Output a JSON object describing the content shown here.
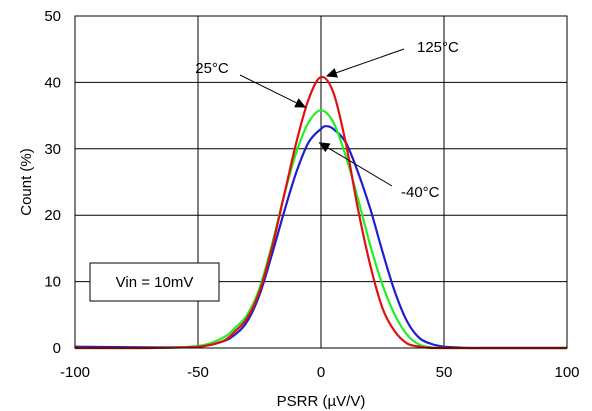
{
  "chart_data": {
    "type": "line",
    "xlabel": "PSRR (µV/V)",
    "ylabel": "Count (%)",
    "xlim": [
      -100,
      100
    ],
    "ylim": [
      0,
      50
    ],
    "xticks": [
      -100,
      -50,
      0,
      50,
      100
    ],
    "yticks": [
      0,
      10,
      20,
      30,
      40,
      50
    ],
    "grid": "vertical and horizontal gridlines",
    "series": [
      {
        "name": "-40°C",
        "color": "#1f1fcf",
        "x": [
          -100,
          -70,
          -50,
          -40,
          -35,
          -30,
          -25,
          -20,
          -15,
          -10,
          -5,
          0,
          2,
          5,
          10,
          15,
          20,
          25,
          30,
          35,
          40,
          45,
          50,
          55,
          60,
          70,
          100
        ],
        "y": [
          0.2,
          0.1,
          0.2,
          1.0,
          2.0,
          4.0,
          8.0,
          14.0,
          20.5,
          26.5,
          31.0,
          33.0,
          33.4,
          33.0,
          31.0,
          26.5,
          21.0,
          14.5,
          8.5,
          4.0,
          1.5,
          0.6,
          0.2,
          0.1,
          0.0,
          0.0,
          0.0
        ]
      },
      {
        "name": "25°C",
        "color": "#22ee22",
        "x": [
          -100,
          -70,
          -50,
          -40,
          -35,
          -30,
          -25,
          -20,
          -15,
          -10,
          -5,
          0,
          5,
          10,
          15,
          20,
          25,
          30,
          35,
          40,
          45,
          50,
          60,
          100
        ],
        "y": [
          0.0,
          0.0,
          0.3,
          1.5,
          3.0,
          5.0,
          9.0,
          15.5,
          23.0,
          29.5,
          34.0,
          35.8,
          34.0,
          29.0,
          22.5,
          15.5,
          9.5,
          5.0,
          2.0,
          0.5,
          0.1,
          0.0,
          0.0,
          0.0
        ]
      },
      {
        "name": "125°C",
        "color": "#e01010",
        "x": [
          -100,
          -70,
          -50,
          -40,
          -35,
          -30,
          -25,
          -20,
          -15,
          -10,
          -5,
          0,
          5,
          10,
          15,
          20,
          25,
          30,
          35,
          40,
          45,
          50,
          60,
          100
        ],
        "y": [
          0.0,
          0.0,
          0.2,
          1.0,
          2.5,
          4.5,
          8.5,
          15.0,
          23.0,
          31.0,
          37.5,
          40.8,
          38.5,
          31.0,
          21.0,
          12.5,
          6.0,
          2.5,
          0.7,
          0.2,
          0.0,
          0.0,
          0.0,
          0.0
        ]
      }
    ],
    "annotations": [
      {
        "text": "125°C",
        "points_to": "125°C"
      },
      {
        "text": "25°C",
        "points_to": "25°C"
      },
      {
        "text": "-40°C",
        "points_to": "-40°C"
      }
    ],
    "legend_box": {
      "text": "Vin = 10mV"
    }
  }
}
